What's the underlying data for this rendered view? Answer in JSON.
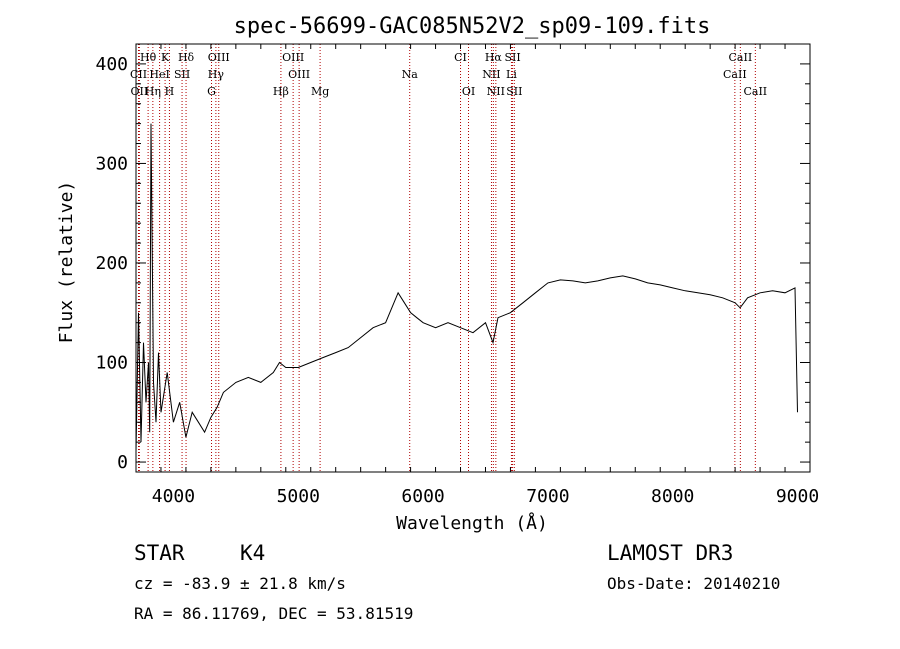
{
  "chart_data": {
    "type": "line",
    "title": "spec-56699-GAC085N52V2_sp09-109.fits",
    "xlabel": "Wavelength (Å)",
    "ylabel": "Flux (relative)",
    "xlim": [
      3700,
      9100
    ],
    "ylim": [
      -10,
      420
    ],
    "xticks": [
      4000,
      5000,
      6000,
      7000,
      8000,
      9000
    ],
    "yticks": [
      0,
      100,
      200,
      300,
      400
    ],
    "spectrum": {
      "name": "flux",
      "x": [
        3700,
        3720,
        3740,
        3760,
        3780,
        3800,
        3810,
        3820,
        3840,
        3860,
        3880,
        3900,
        3950,
        4000,
        4050,
        4100,
        4150,
        4200,
        4250,
        4300,
        4350,
        4400,
        4500,
        4600,
        4700,
        4800,
        4850,
        4900,
        5000,
        5100,
        5200,
        5300,
        5400,
        5500,
        5600,
        5700,
        5800,
        5850,
        5900,
        5950,
        6000,
        6100,
        6200,
        6300,
        6400,
        6500,
        6560,
        6600,
        6700,
        6800,
        6900,
        7000,
        7100,
        7200,
        7300,
        7400,
        7500,
        7600,
        7700,
        7800,
        7900,
        8000,
        8100,
        8200,
        8300,
        8400,
        8500,
        8540,
        8600,
        8700,
        8800,
        8900,
        8980,
        9000
      ],
      "y": [
        10,
        150,
        20,
        120,
        60,
        100,
        30,
        340,
        80,
        40,
        110,
        50,
        90,
        40,
        60,
        25,
        50,
        40,
        30,
        45,
        55,
        70,
        80,
        85,
        80,
        90,
        100,
        95,
        95,
        100,
        105,
        110,
        115,
        125,
        135,
        140,
        170,
        160,
        150,
        145,
        140,
        135,
        140,
        135,
        130,
        140,
        120,
        145,
        150,
        160,
        170,
        180,
        183,
        182,
        180,
        182,
        185,
        187,
        184,
        180,
        178,
        175,
        172,
        170,
        168,
        165,
        160,
        155,
        165,
        170,
        172,
        170,
        175,
        50
      ]
    },
    "lines": [
      {
        "label": "Hθ",
        "x": 3797,
        "row": 0
      },
      {
        "label": "K",
        "x": 3933,
        "row": 0
      },
      {
        "label": "Hδ",
        "x": 4101,
        "row": 0
      },
      {
        "label": "OIII",
        "x": 4363,
        "row": 0
      },
      {
        "label": "OIII",
        "x": 4959,
        "row": 0
      },
      {
        "label": "CI",
        "x": 6300,
        "row": 0
      },
      {
        "label": "Hα",
        "x": 6563,
        "row": 0
      },
      {
        "label": "SII",
        "x": 6717,
        "row": 0
      },
      {
        "label": "CaII",
        "x": 8542,
        "row": 0
      },
      {
        "label": "CII",
        "x": 3720,
        "row": 1
      },
      {
        "label": "HeI",
        "x": 3889,
        "row": 1
      },
      {
        "label": "SII",
        "x": 4069,
        "row": 1
      },
      {
        "label": "Hγ",
        "x": 4340,
        "row": 1
      },
      {
        "label": "OIII",
        "x": 5007,
        "row": 1
      },
      {
        "label": "Na",
        "x": 5893,
        "row": 1
      },
      {
        "label": "NII",
        "x": 6548,
        "row": 1
      },
      {
        "label": "Li",
        "x": 6708,
        "row": 1
      },
      {
        "label": "CaII",
        "x": 8498,
        "row": 1
      },
      {
        "label": "OII",
        "x": 3727,
        "row": 2
      },
      {
        "label": "Hη",
        "x": 3835,
        "row": 2
      },
      {
        "label": "H",
        "x": 3968,
        "row": 2
      },
      {
        "label": "G",
        "x": 4305,
        "row": 2
      },
      {
        "label": "Hβ",
        "x": 4861,
        "row": 2
      },
      {
        "label": "Mg",
        "x": 5175,
        "row": 2
      },
      {
        "label": "OI",
        "x": 6364,
        "row": 2
      },
      {
        "label": "NII",
        "x": 6583,
        "row": 2
      },
      {
        "label": "SII",
        "x": 6731,
        "row": 2
      },
      {
        "label": "CaII",
        "x": 8662,
        "row": 2
      }
    ]
  },
  "info": {
    "object_type": "STAR",
    "subclass": "K4",
    "survey": "LAMOST DR3",
    "cz": "cz = -83.9 ± 21.8 km/s",
    "obs_date": "Obs-Date: 20140210",
    "coords": "RA =  86.11769, DEC =  53.81519"
  },
  "colors": {
    "line_marker": "#b00000",
    "spectrum": "#000000",
    "axes": "#000000"
  }
}
